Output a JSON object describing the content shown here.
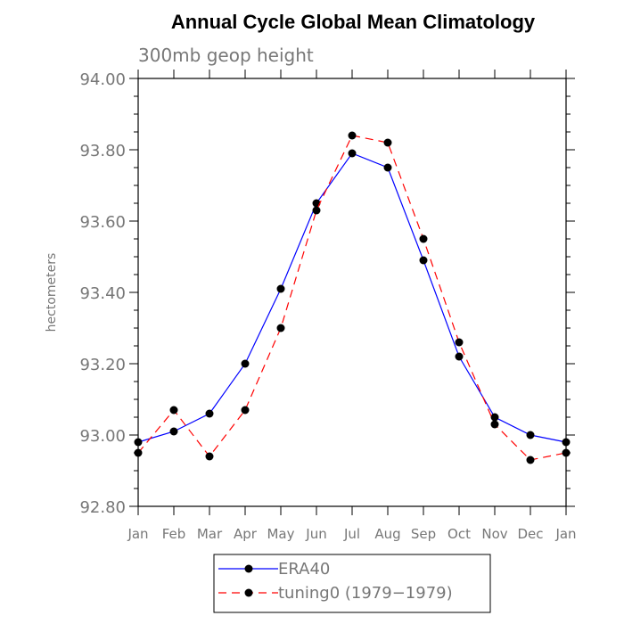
{
  "chart_data": {
    "type": "line",
    "title": "Annual Cycle Global Mean Climatology",
    "subtitle": "300mb geop height",
    "ylabel": "hectometers",
    "xlabel": "",
    "ylim": [
      92.8,
      94.0
    ],
    "yticks": [
      "92.80",
      "93.00",
      "93.20",
      "93.40",
      "93.60",
      "93.80",
      "94.00"
    ],
    "categories": [
      "Jan",
      "Feb",
      "Mar",
      "Apr",
      "May",
      "Jun",
      "Jul",
      "Aug",
      "Sep",
      "Oct",
      "Nov",
      "Dec",
      "Jan"
    ],
    "series": [
      {
        "name": "ERA40",
        "color": "#0000ff",
        "style": "solid",
        "marker": "filled-circle",
        "values": [
          92.98,
          93.01,
          93.06,
          93.2,
          93.41,
          93.65,
          93.79,
          93.75,
          93.49,
          93.22,
          93.05,
          93.0,
          92.98
        ]
      },
      {
        "name": "tuning0 (1979−1979)",
        "color": "#ff0000",
        "style": "dashed",
        "marker": "filled-circle",
        "values": [
          92.95,
          93.07,
          92.94,
          93.07,
          93.3,
          93.63,
          93.84,
          93.82,
          93.55,
          93.26,
          93.03,
          92.93,
          92.95
        ]
      }
    ],
    "grid": false,
    "legend_position": "bottom-center"
  }
}
